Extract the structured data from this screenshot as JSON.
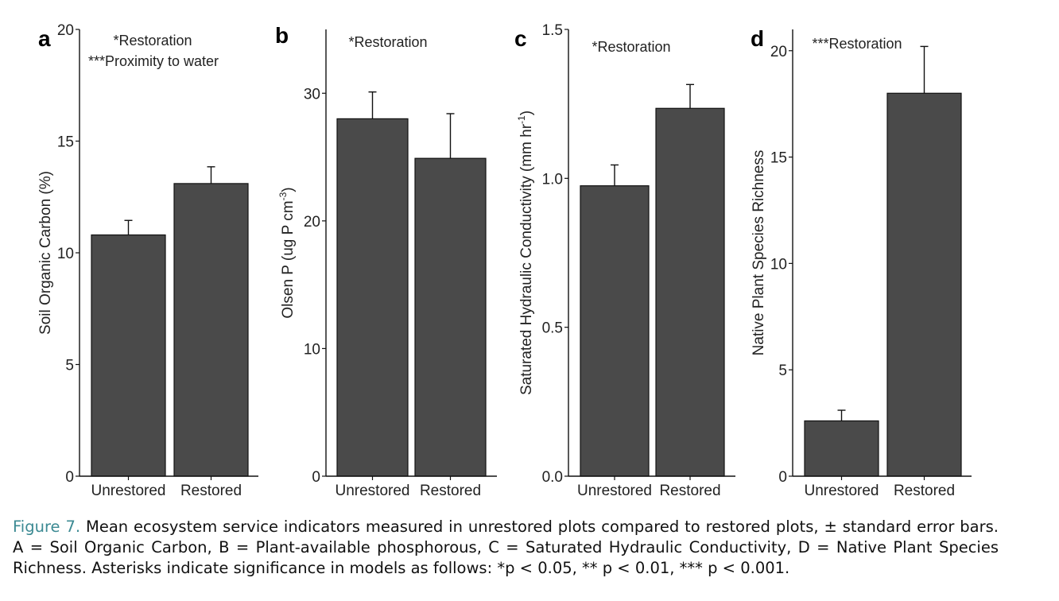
{
  "chart_data": [
    {
      "type": "bar",
      "panel_letter": "a",
      "categories": [
        "Unrestored",
        "Restored"
      ],
      "values": [
        10.8,
        13.1
      ],
      "error": [
        0.65,
        0.75
      ],
      "ylabel": "Soil Organic Carbon (%)",
      "ylim": [
        0,
        20
      ],
      "yticks": [
        "0",
        "5",
        "10",
        "15",
        "20"
      ],
      "annotations": [
        "*Restoration",
        "***Proximity to water"
      ],
      "bar_color": "#4a4a4a"
    },
    {
      "type": "bar",
      "panel_letter": "b",
      "categories": [
        "Unrestored",
        "Restored"
      ],
      "values": [
        28.0,
        24.9
      ],
      "error": [
        2.1,
        3.5
      ],
      "ylabel": "Olsen P (ug P cm",
      "ylabel_sup": "-3",
      "ylabel_end": ")",
      "ylim": [
        0,
        35
      ],
      "yticks": [
        "0",
        "10",
        "20",
        "30"
      ],
      "annotations": [
        "*Restoration"
      ],
      "bar_color": "#4a4a4a"
    },
    {
      "type": "bar",
      "panel_letter": "c",
      "categories": [
        "Unrestored",
        "Restored"
      ],
      "values": [
        0.975,
        1.235
      ],
      "error": [
        0.07,
        0.08
      ],
      "ylabel": "Saturated Hydraulic Conductivity (mm hr",
      "ylabel_sup": "-1",
      "ylabel_end": ")",
      "ylim": [
        0,
        1.5
      ],
      "yticks": [
        "0.0",
        "0.5",
        "1.0",
        "1.5"
      ],
      "annotations": [
        "*Restoration"
      ],
      "bar_color": "#4a4a4a"
    },
    {
      "type": "bar",
      "panel_letter": "d",
      "categories": [
        "Unrestored",
        "Restored"
      ],
      "values": [
        2.6,
        18.0
      ],
      "error": [
        0.5,
        2.2
      ],
      "ylabel": "Native Plant Species Richness",
      "ylim": [
        0,
        21
      ],
      "yticks": [
        "0",
        "5",
        "10",
        "15",
        "20"
      ],
      "annotations": [
        "***Restoration"
      ],
      "bar_color": "#4a4a4a"
    }
  ],
  "caption": {
    "label": "Figure 7.",
    "text": " Mean ecosystem service indicators measured in unrestored plots compared to restored plots, ± standard error bars. A = Soil Organic Carbon, B = Plant-available phosphorous, C = Saturated Hydraulic Conductivity, D = Native Plant Species Richness. Asterisks indicate significance in models as follows: *p < 0.05, ** p < 0.01, *** p < 0.001."
  }
}
